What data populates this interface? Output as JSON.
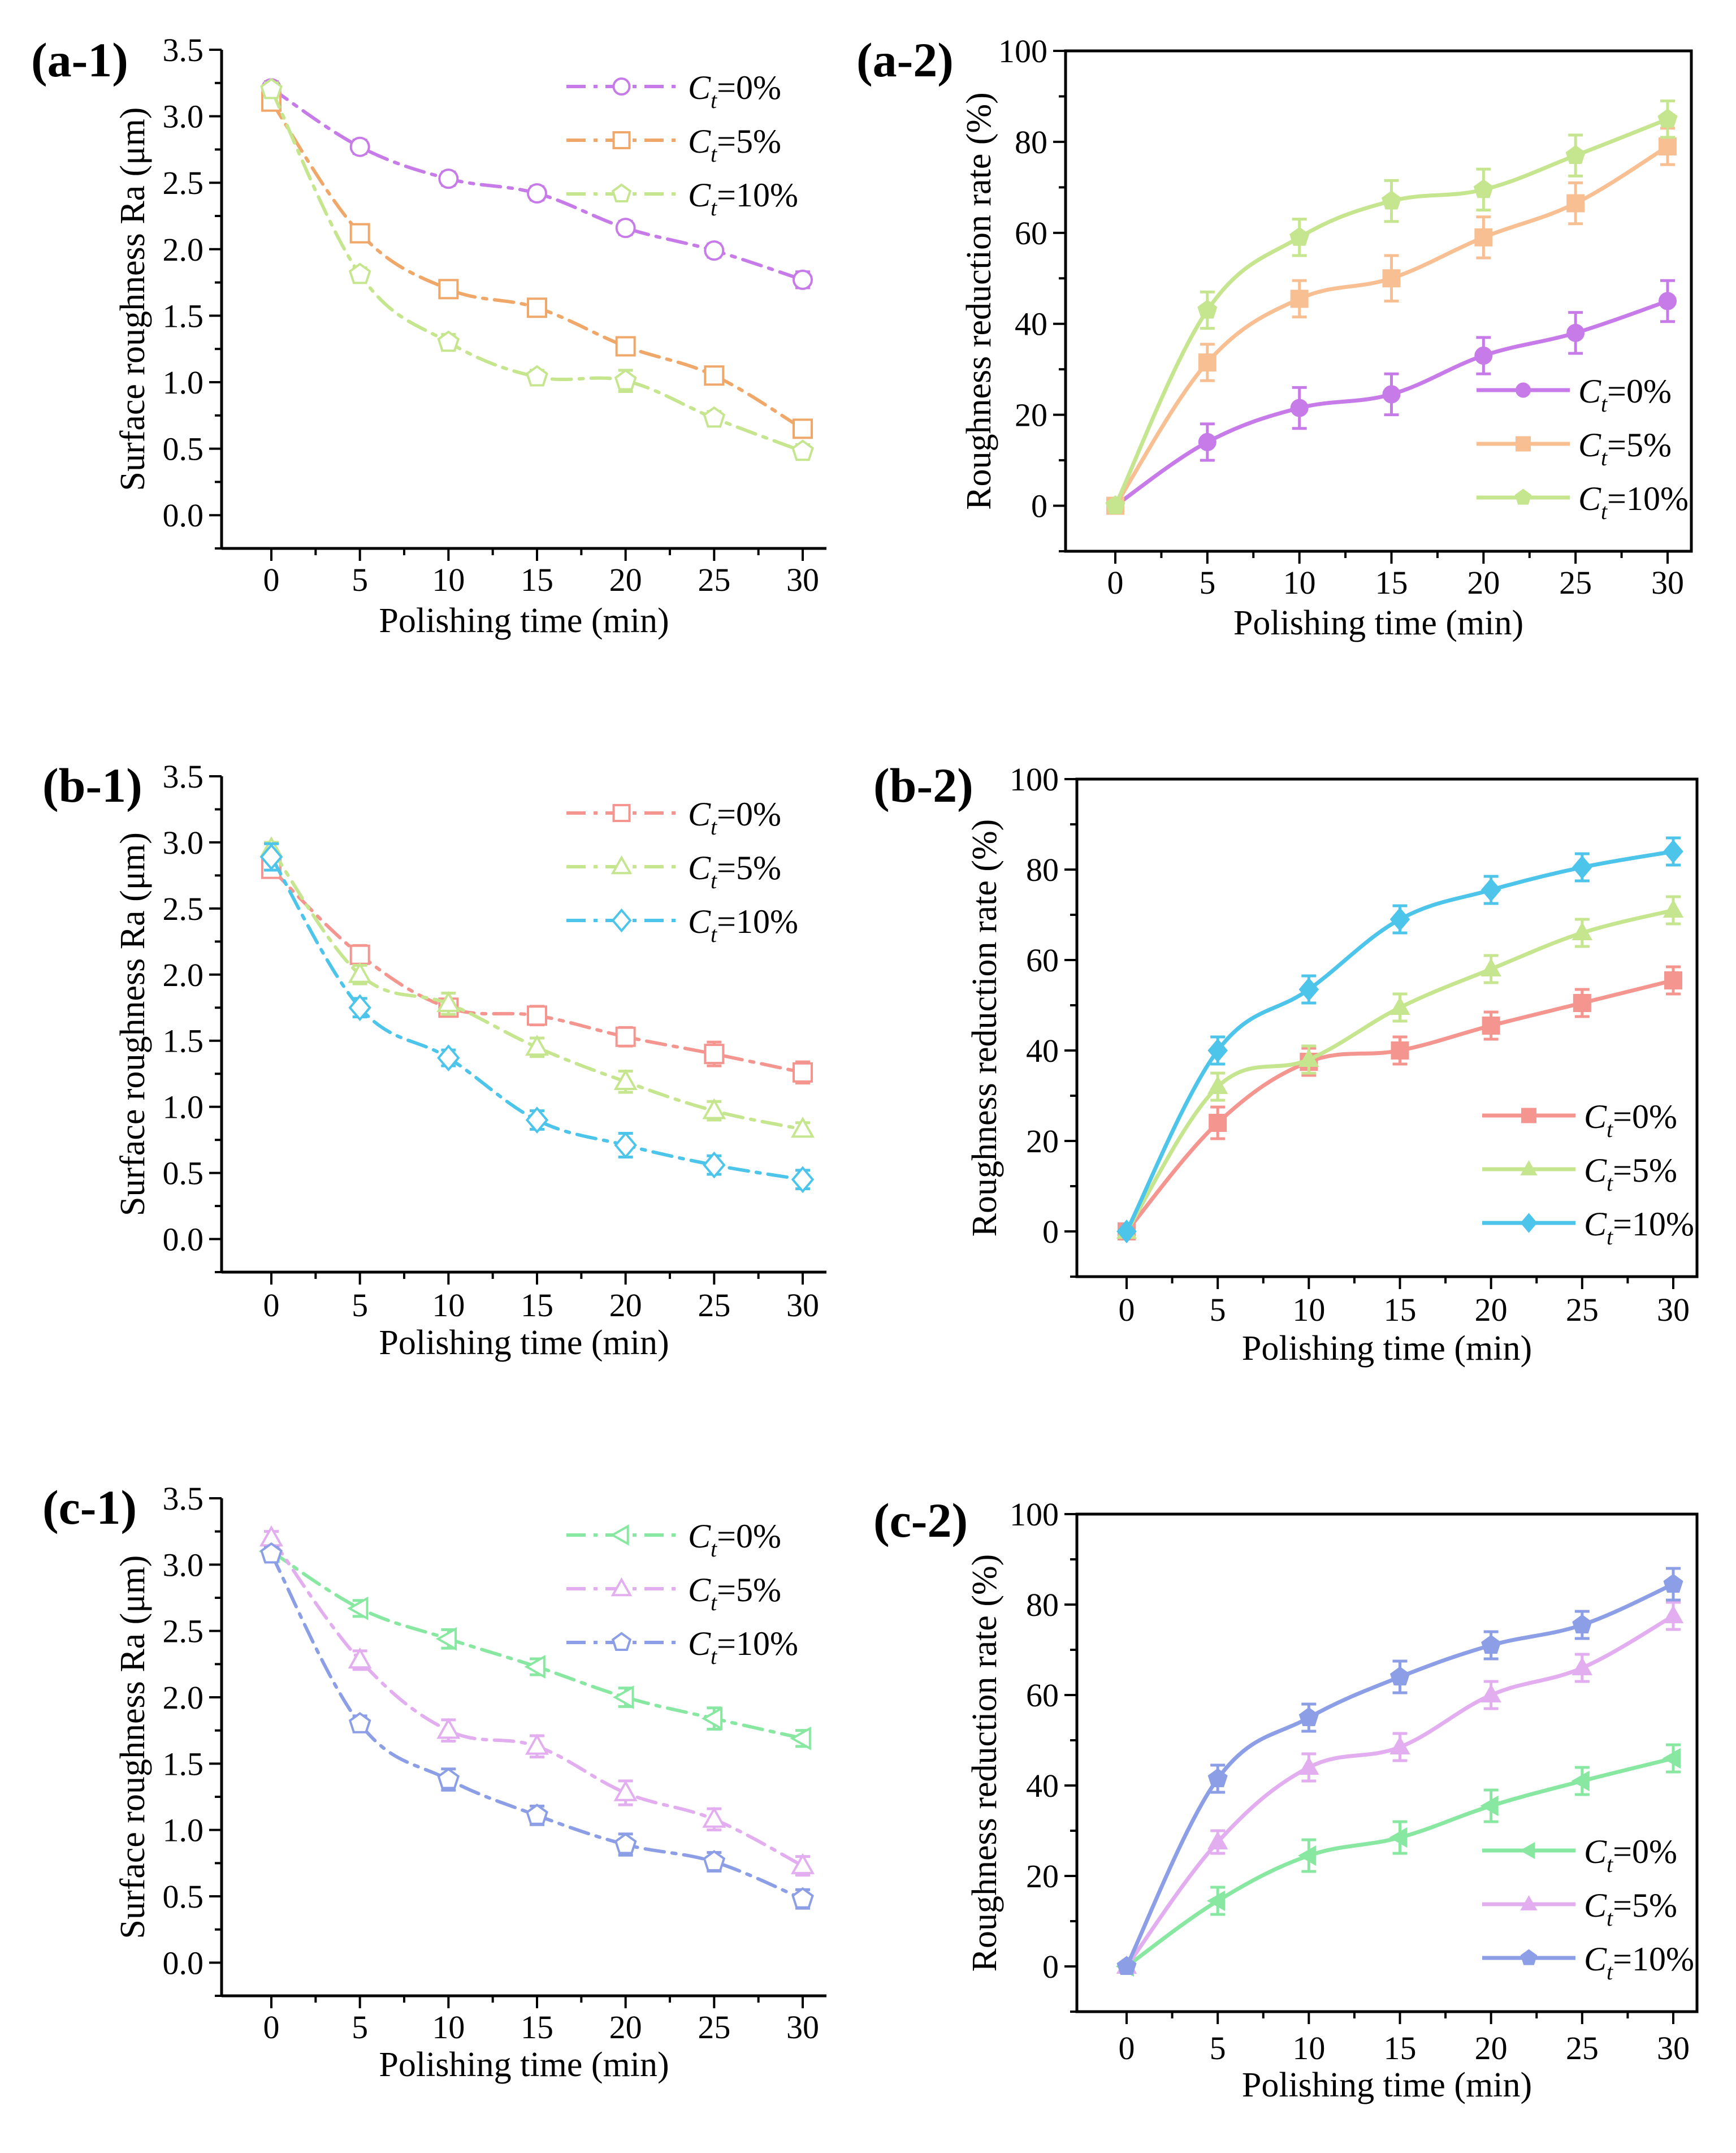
{
  "chart_data": [
    {
      "id": "a-1",
      "panel_label": "(a-1)",
      "type": "line",
      "style": "dashdot-open",
      "xlabel": "Polishing time (min)",
      "ylabel": "Surface roughness Ra (μm)",
      "x": [
        0,
        5,
        10,
        15,
        20,
        25,
        30
      ],
      "x_ticks": [
        "0",
        "5",
        "10",
        "15",
        "20",
        "25",
        "30"
      ],
      "ylim": [
        -0.25,
        3.5
      ],
      "y_ticks": [
        0.0,
        0.5,
        1.0,
        1.5,
        2.0,
        2.5,
        3.0,
        3.5
      ],
      "y_tick_labels": [
        "0.0",
        "0.5",
        "1.0",
        "1.5",
        "2.0",
        "2.5",
        "3.0",
        "3.5"
      ],
      "legend_position": "top-right",
      "series": [
        {
          "name": "Ct=0%",
          "legend": {
            "c": "C",
            "sub": "t",
            "rest": "=0%"
          },
          "color": "#c77be8",
          "marker": "circle",
          "values": [
            3.21,
            2.77,
            2.53,
            2.42,
            2.16,
            1.99,
            1.77
          ],
          "errors": [
            0.05,
            0.05,
            0.05,
            0.05,
            0.05,
            0.05,
            0.06
          ]
        },
        {
          "name": "Ct=5%",
          "legend": {
            "c": "C",
            "sub": "t",
            "rest": "=5%"
          },
          "color": "#f0a86a",
          "marker": "square",
          "values": [
            3.11,
            2.12,
            1.7,
            1.56,
            1.27,
            1.05,
            0.65
          ],
          "errors": [
            0.05,
            0.05,
            0.05,
            0.06,
            0.06,
            0.05,
            0.06
          ]
        },
        {
          "name": "Ct=10%",
          "legend": {
            "c": "C",
            "sub": "t",
            "rest": "=10%"
          },
          "color": "#c5e58e",
          "marker": "pentagon",
          "values": [
            3.2,
            1.81,
            1.3,
            1.04,
            1.01,
            0.73,
            0.48
          ],
          "errors": [
            0.05,
            0.05,
            0.06,
            0.05,
            0.08,
            0.05,
            0.05
          ]
        }
      ]
    },
    {
      "id": "a-2",
      "panel_label": "(a-2)",
      "type": "line",
      "style": "solid-filled",
      "xlabel": "Polishing time (min)",
      "ylabel": "Roughness reduction rate (%)",
      "x": [
        0,
        5,
        10,
        15,
        20,
        25,
        30
      ],
      "x_ticks": [
        "0",
        "5",
        "10",
        "15",
        "20",
        "25",
        "30"
      ],
      "ylim": [
        -10,
        100
      ],
      "y_ticks": [
        0,
        20,
        40,
        60,
        80,
        100
      ],
      "y_tick_labels": [
        "0",
        "20",
        "40",
        "60",
        "80",
        "100"
      ],
      "legend_position": "bottom-right",
      "series": [
        {
          "name": "Ct=0%",
          "legend": {
            "c": "C",
            "sub": "t",
            "rest": "=0%"
          },
          "color": "#c77be8",
          "marker": "circle",
          "values": [
            0,
            14,
            21.5,
            24.5,
            33,
            38,
            45
          ],
          "errors": [
            0,
            4,
            4.5,
            4.5,
            4,
            4.5,
            4.5
          ]
        },
        {
          "name": "Ct=5%",
          "legend": {
            "c": "C",
            "sub": "t",
            "rest": "=5%"
          },
          "color": "#f8bf93",
          "marker": "square",
          "values": [
            0,
            31.5,
            45.5,
            50,
            59,
            66.5,
            79
          ],
          "errors": [
            0,
            4,
            4,
            5,
            4.5,
            4.5,
            4
          ]
        },
        {
          "name": "Ct=10%",
          "legend": {
            "c": "C",
            "sub": "t",
            "rest": "=10%"
          },
          "color": "#c5e58e",
          "marker": "pentagon",
          "values": [
            0,
            43,
            59,
            67,
            69.5,
            77,
            85
          ],
          "errors": [
            0,
            4,
            4,
            4.5,
            4.5,
            4.5,
            4
          ]
        }
      ]
    },
    {
      "id": "b-1",
      "panel_label": "(b-1)",
      "type": "line",
      "style": "dashdot-open",
      "xlabel": "Polishing time (min)",
      "ylabel": "Surface roughness Ra (μm)",
      "x": [
        0,
        5,
        10,
        15,
        20,
        25,
        30
      ],
      "x_ticks": [
        "0",
        "5",
        "10",
        "15",
        "20",
        "25",
        "30"
      ],
      "ylim": [
        -0.25,
        3.5
      ],
      "y_ticks": [
        0.0,
        0.5,
        1.0,
        1.5,
        2.0,
        2.5,
        3.0,
        3.5
      ],
      "y_tick_labels": [
        "0.0",
        "0.5",
        "1.0",
        "1.5",
        "2.0",
        "2.5",
        "3.0",
        "3.5"
      ],
      "legend_position": "top-right",
      "series": [
        {
          "name": "Ct=0%",
          "legend": {
            "c": "C",
            "sub": "t",
            "rest": "=0%"
          },
          "color": "#f4958f",
          "marker": "square",
          "values": [
            2.8,
            2.15,
            1.75,
            1.69,
            1.53,
            1.4,
            1.26
          ],
          "errors": [
            0.05,
            0.07,
            0.06,
            0.07,
            0.07,
            0.09,
            0.08
          ]
        },
        {
          "name": "Ct=5%",
          "legend": {
            "c": "C",
            "sub": "t",
            "rest": "=5%"
          },
          "color": "#c5e58e",
          "marker": "triangle",
          "values": [
            2.95,
            2.0,
            1.78,
            1.45,
            1.19,
            0.97,
            0.83
          ],
          "errors": [
            0.05,
            0.07,
            0.08,
            0.07,
            0.08,
            0.07,
            0.05
          ]
        },
        {
          "name": "Ct=10%",
          "legend": {
            "c": "C",
            "sub": "t",
            "rest": "=10%"
          },
          "color": "#4dc4ea",
          "marker": "diamond",
          "values": [
            2.89,
            1.75,
            1.37,
            0.9,
            0.71,
            0.56,
            0.45
          ],
          "errors": [
            0.1,
            0.07,
            0.06,
            0.07,
            0.09,
            0.07,
            0.07
          ]
        }
      ]
    },
    {
      "id": "b-2",
      "panel_label": "(b-2)",
      "type": "line",
      "style": "solid-filled",
      "xlabel": "Polishing time (min)",
      "ylabel": "Roughness reduction rate (%)",
      "x": [
        0,
        5,
        10,
        15,
        20,
        25,
        30
      ],
      "x_ticks": [
        "0",
        "5",
        "10",
        "15",
        "20",
        "25",
        "30"
      ],
      "ylim": [
        -10,
        100
      ],
      "y_ticks": [
        0,
        20,
        40,
        60,
        80,
        100
      ],
      "y_tick_labels": [
        "0",
        "20",
        "40",
        "60",
        "80",
        "100"
      ],
      "legend_position": "bottom-right",
      "series": [
        {
          "name": "Ct=0%",
          "legend": {
            "c": "C",
            "sub": "t",
            "rest": "=0%"
          },
          "color": "#f4958f",
          "marker": "square",
          "values": [
            0,
            24,
            37.5,
            40,
            45.5,
            50.5,
            55.5
          ],
          "errors": [
            0,
            3.5,
            3,
            3,
            3,
            3,
            3
          ]
        },
        {
          "name": "Ct=5%",
          "legend": {
            "c": "C",
            "sub": "t",
            "rest": "=5%"
          },
          "color": "#c5e58e",
          "marker": "triangle",
          "values": [
            0,
            32,
            38,
            49.5,
            58,
            66,
            71
          ],
          "errors": [
            0,
            3,
            3,
            3,
            3,
            3,
            3
          ]
        },
        {
          "name": "Ct=10%",
          "legend": {
            "c": "C",
            "sub": "t",
            "rest": "=10%"
          },
          "color": "#4dc4ea",
          "marker": "diamond",
          "values": [
            0,
            40,
            53.5,
            69,
            75.5,
            80.5,
            84
          ],
          "errors": [
            0,
            3,
            3,
            3,
            3,
            3,
            3
          ]
        }
      ]
    },
    {
      "id": "c-1",
      "panel_label": "(c-1)",
      "type": "line",
      "style": "dashdot-open",
      "xlabel": "Polishing time (min)",
      "ylabel": "Surface roughness Ra (μm)",
      "x": [
        0,
        5,
        10,
        15,
        20,
        25,
        30
      ],
      "x_ticks": [
        "0",
        "5",
        "10",
        "15",
        "20",
        "25",
        "30"
      ],
      "ylim": [
        -0.25,
        3.5
      ],
      "y_ticks": [
        0.0,
        0.5,
        1.0,
        1.5,
        2.0,
        2.5,
        3.0,
        3.5
      ],
      "y_tick_labels": [
        "0.0",
        "0.5",
        "1.0",
        "1.5",
        "2.0",
        "2.5",
        "3.0",
        "3.5"
      ],
      "legend_position": "top-right",
      "series": [
        {
          "name": "Ct=0%",
          "legend": {
            "c": "C",
            "sub": "t",
            "rest": "=0%"
          },
          "color": "#88e8a2",
          "marker": "triangle-left",
          "values": [
            3.1,
            2.67,
            2.44,
            2.23,
            2.0,
            1.84,
            1.69
          ],
          "errors": [
            0.05,
            0.06,
            0.07,
            0.06,
            0.07,
            0.08,
            0.06
          ]
        },
        {
          "name": "Ct=5%",
          "legend": {
            "c": "C",
            "sub": "t",
            "rest": "=5%"
          },
          "color": "#e2aef0",
          "marker": "triangle",
          "values": [
            3.2,
            2.28,
            1.75,
            1.63,
            1.28,
            1.08,
            0.73
          ],
          "errors": [
            0.05,
            0.07,
            0.08,
            0.08,
            0.09,
            0.08,
            0.07
          ]
        },
        {
          "name": "Ct=10%",
          "legend": {
            "c": "C",
            "sub": "t",
            "rest": "=10%"
          },
          "color": "#8b9ee6",
          "marker": "pentagon",
          "values": [
            3.08,
            1.8,
            1.38,
            1.11,
            0.89,
            0.76,
            0.48
          ],
          "errors": [
            0.05,
            0.06,
            0.08,
            0.07,
            0.08,
            0.07,
            0.07
          ]
        }
      ]
    },
    {
      "id": "c-2",
      "panel_label": "(c-2)",
      "type": "line",
      "style": "solid-filled",
      "xlabel": "Polishing time (min)",
      "ylabel": "Roughness reduction rate (%)",
      "x": [
        0,
        5,
        10,
        15,
        20,
        25,
        30
      ],
      "x_ticks": [
        "0",
        "5",
        "10",
        "15",
        "20",
        "25",
        "30"
      ],
      "ylim": [
        -10,
        100
      ],
      "y_ticks": [
        0,
        20,
        40,
        60,
        80,
        100
      ],
      "y_tick_labels": [
        "0",
        "20",
        "40",
        "60",
        "80",
        "100"
      ],
      "legend_position": "bottom-right",
      "series": [
        {
          "name": "Ct=0%",
          "legend": {
            "c": "C",
            "sub": "t",
            "rest": "=0%"
          },
          "color": "#88e8a2",
          "marker": "triangle-left",
          "values": [
            0,
            14.5,
            24.5,
            28.5,
            35.5,
            41,
            46
          ],
          "errors": [
            0,
            3,
            3.5,
            3.5,
            3.5,
            3,
            3
          ]
        },
        {
          "name": "Ct=5%",
          "legend": {
            "c": "C",
            "sub": "t",
            "rest": "=5%"
          },
          "color": "#e2aef0",
          "marker": "triangle",
          "values": [
            0,
            27.5,
            44,
            48.5,
            60,
            66,
            77.5
          ],
          "errors": [
            0,
            2.5,
            3,
            3,
            3,
            3,
            3
          ]
        },
        {
          "name": "Ct=10%",
          "legend": {
            "c": "C",
            "sub": "t",
            "rest": "=10%"
          },
          "color": "#8b9ee6",
          "marker": "pentagon",
          "values": [
            0,
            41.5,
            55,
            64,
            71,
            75.5,
            84.5
          ],
          "errors": [
            0,
            3,
            3,
            3.5,
            3,
            3,
            3.5
          ]
        }
      ]
    }
  ]
}
